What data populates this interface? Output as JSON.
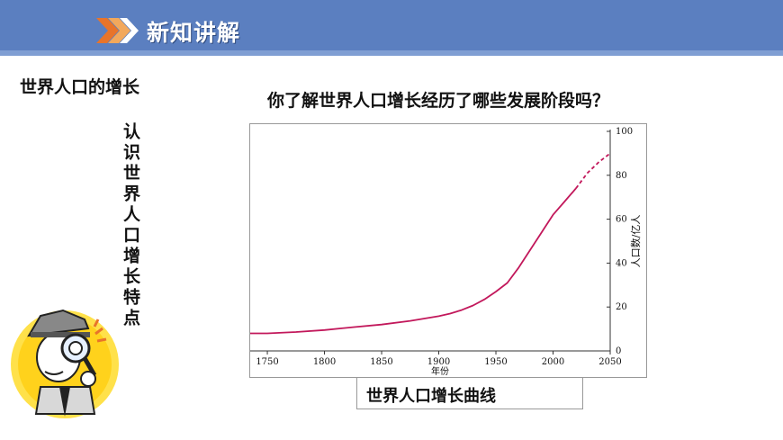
{
  "header": {
    "title": "新知讲解",
    "chevron_colors": [
      "#e8742a",
      "#f2a85c",
      "#ffffff"
    ]
  },
  "section_title": "世界人口的增长",
  "question": "你了解世界人口增长经历了哪些发展阶段吗？",
  "vertical_label": "认识世界人口增长特点",
  "caption": "世界人口增长曲线",
  "chart_data": {
    "type": "line",
    "title": "",
    "xlabel": "年份",
    "ylabel": "人口数/亿人",
    "xlim": [
      1735,
      2050
    ],
    "ylim": [
      0,
      100
    ],
    "x_ticks": [
      1750,
      1800,
      1850,
      1900,
      1950,
      2000,
      2050
    ],
    "y_ticks": [
      0,
      20,
      40,
      60,
      80,
      100
    ],
    "y_axis_side": "right",
    "grid": false,
    "line_color": "#c2185b",
    "series": [
      {
        "style": "solid",
        "x": [
          1735,
          1750,
          1775,
          1800,
          1825,
          1850,
          1875,
          1900,
          1910,
          1920,
          1930,
          1940,
          1950,
          1960,
          1970,
          1980,
          1990,
          2000,
          2010,
          2020
        ],
        "y": [
          8,
          8,
          8.6,
          9.5,
          10.8,
          12,
          13.7,
          15.8,
          17,
          18.6,
          20.7,
          23.5,
          27,
          31,
          38,
          46,
          54,
          62,
          68,
          74
        ]
      },
      {
        "style": "dashed",
        "x": [
          2020,
          2030,
          2040,
          2050
        ],
        "y": [
          74,
          81,
          86,
          90
        ]
      }
    ]
  }
}
